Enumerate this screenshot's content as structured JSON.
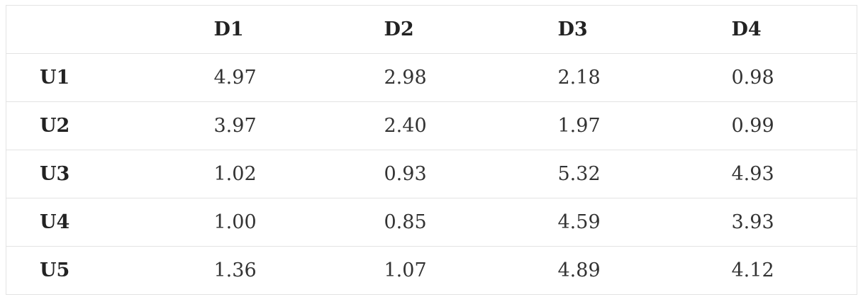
{
  "table": {
    "columns": [
      "",
      "D1",
      "D2",
      "D3",
      "D4"
    ],
    "rows": [
      {
        "label": "U1",
        "values": [
          "4.97",
          "2.98",
          "2.18",
          "0.98"
        ]
      },
      {
        "label": "U2",
        "values": [
          "3.97",
          "2.40",
          "1.97",
          "0.99"
        ]
      },
      {
        "label": "U3",
        "values": [
          "1.02",
          "0.93",
          "5.32",
          "4.93"
        ]
      },
      {
        "label": "U4",
        "values": [
          "1.00",
          "0.85",
          "4.59",
          "3.93"
        ]
      },
      {
        "label": "U5",
        "values": [
          "1.36",
          "1.07",
          "4.89",
          "4.12"
        ]
      }
    ]
  }
}
